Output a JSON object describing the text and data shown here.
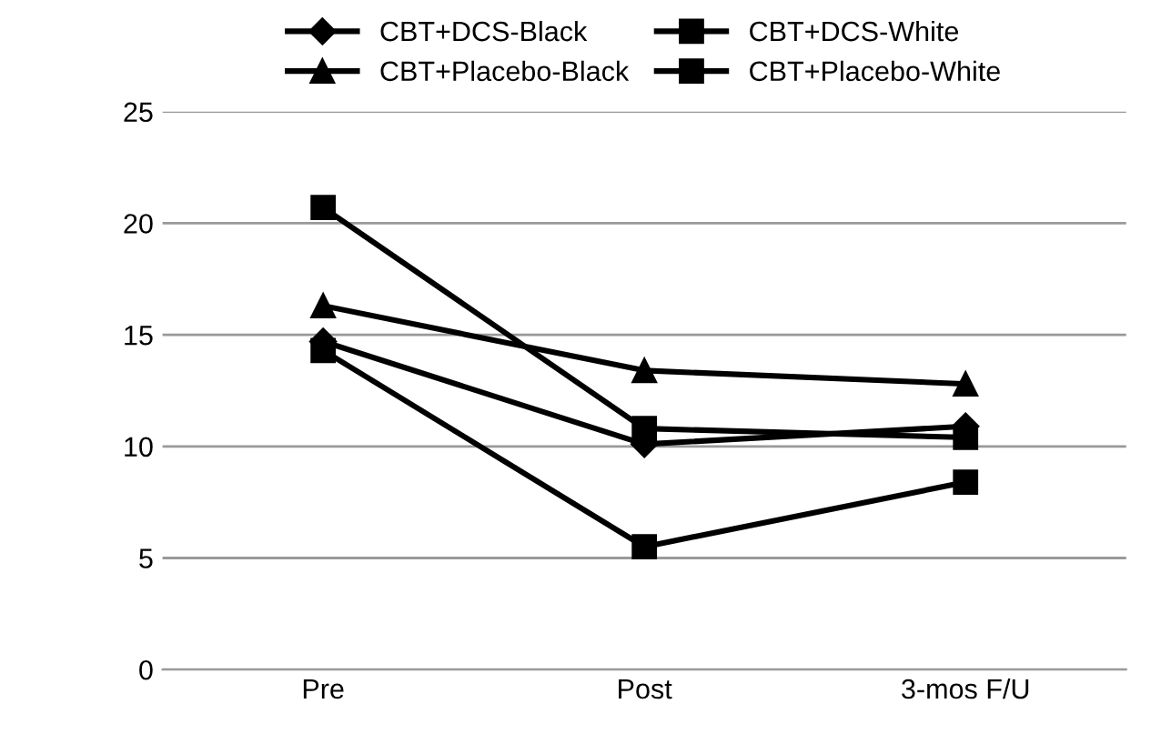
{
  "chart_data": {
    "type": "line",
    "categories": [
      "Pre",
      "Post",
      "3-mos F/U"
    ],
    "series": [
      {
        "name": "CBT+DCS-Black",
        "color": "#000000",
        "marker": "diamond",
        "values": [
          14.7,
          10.1,
          10.9
        ]
      },
      {
        "name": "CBT+DCS-White",
        "color": "#000000",
        "marker": "square",
        "values": [
          20.7,
          10.8,
          10.4
        ]
      },
      {
        "name": "CBT+Placebo-Black",
        "color": "#000000",
        "marker": "triangle",
        "values": [
          16.3,
          13.4,
          12.8
        ]
      },
      {
        "name": "CBT+Placebo-White",
        "color": "#000000",
        "marker": "square",
        "values": [
          14.3,
          5.5,
          8.4
        ]
      }
    ],
    "ylim": [
      0,
      25
    ],
    "yticks": [
      0,
      5,
      10,
      15,
      20,
      25
    ],
    "grid": "y",
    "legend": "top",
    "line_style": "solid"
  }
}
